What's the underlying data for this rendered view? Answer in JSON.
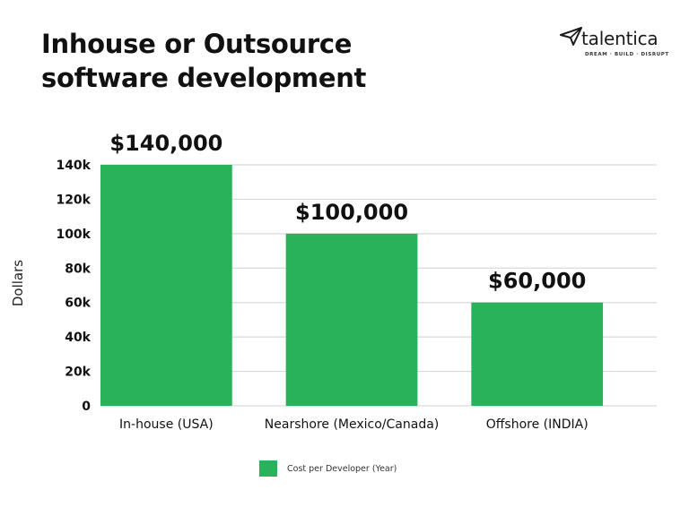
{
  "title_lines": [
    "Inhouse or Outsource",
    "software development"
  ],
  "brand": {
    "name": "talentica",
    "tagline": "DREAM · BUILD · DISRUPT",
    "icon": "paper-plane-icon"
  },
  "colors": {
    "bar": "#2ab25a",
    "grid": "#d9d9d9",
    "text": "#111111"
  },
  "chart_data": {
    "type": "bar",
    "categories": [
      "In-house (USA)",
      "Nearshore (Mexico/Canada)",
      "Offshore (INDIA)"
    ],
    "series": [
      {
        "name": "Cost per Developer (Year)",
        "values": [
          140000,
          100000,
          60000
        ]
      }
    ],
    "data_labels": [
      "$140,000",
      "$100,000",
      "$60,000"
    ],
    "ylabel": "Dollars",
    "xlabel": "",
    "ylim": [
      0,
      140000
    ],
    "yticks": [
      0,
      20000,
      40000,
      60000,
      80000,
      100000,
      120000,
      140000
    ],
    "ytick_labels": [
      "0",
      "20k",
      "40k",
      "60k",
      "80k",
      "100k",
      "120k",
      "140k"
    ],
    "grid": true,
    "legend_position": "bottom"
  }
}
